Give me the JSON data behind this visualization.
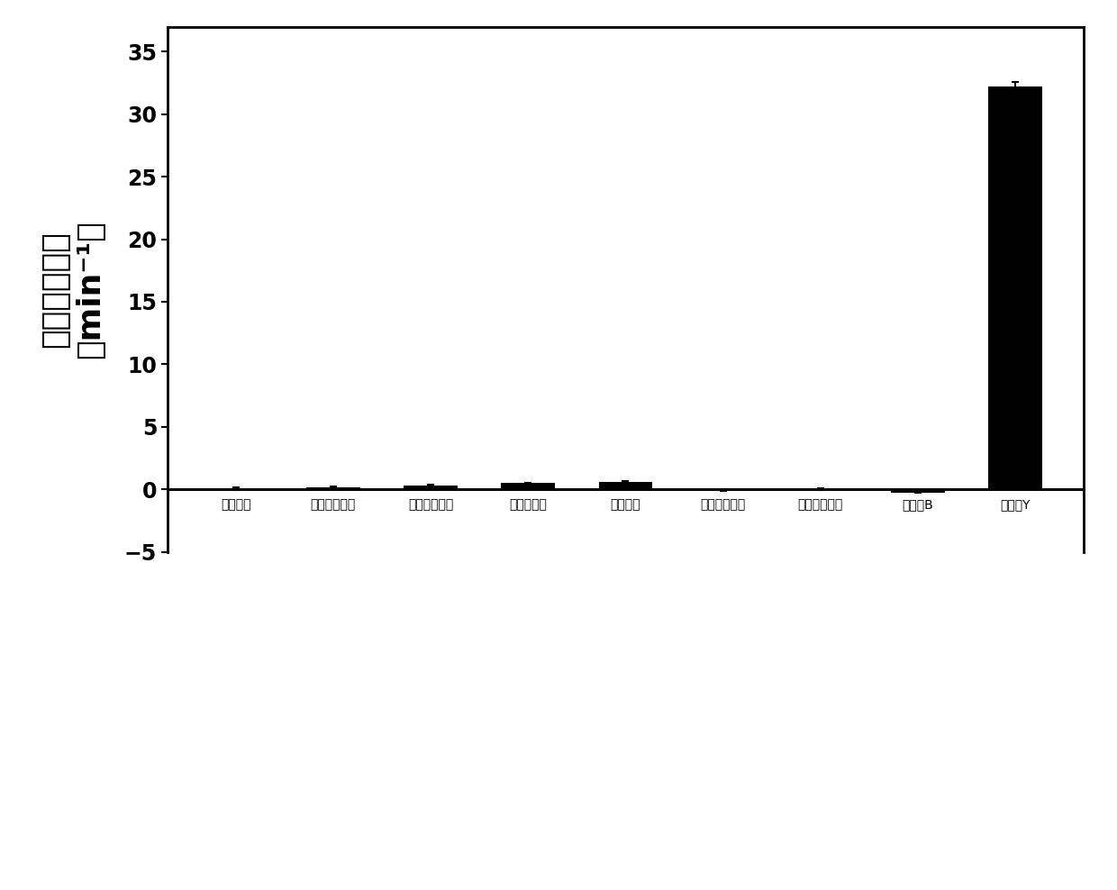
{
  "categories": [
    "自发水解",
    "乙酰胆碱酯酶",
    "丁酰胆碱酯酶",
    "弹性蛋白酶",
    "胰蛋白酶",
    "胰凝乳蛋白酶",
    "牛血清白蛋白",
    "羧肽酶B",
    "羧肽酶Y"
  ],
  "values": [
    0.02,
    0.15,
    0.3,
    0.5,
    0.6,
    -0.08,
    0.01,
    -0.25,
    32.2
  ],
  "errors": [
    0.1,
    0.07,
    0.05,
    0.05,
    0.06,
    0.06,
    0.04,
    0.04,
    0.35
  ],
  "bar_color": "#000000",
  "ylabel_line1": "相对水解速率",
  "ylabel_line2": "（min⁻¹）",
  "ylim": [
    -5,
    37
  ],
  "yticks": [
    -5,
    0,
    5,
    10,
    15,
    20,
    25,
    30,
    35
  ],
  "background_color": "#ffffff",
  "bar_width": 0.55,
  "tick_label_fontsize": 17,
  "ylabel_fontsize": 26,
  "axis_linewidth": 2.0
}
